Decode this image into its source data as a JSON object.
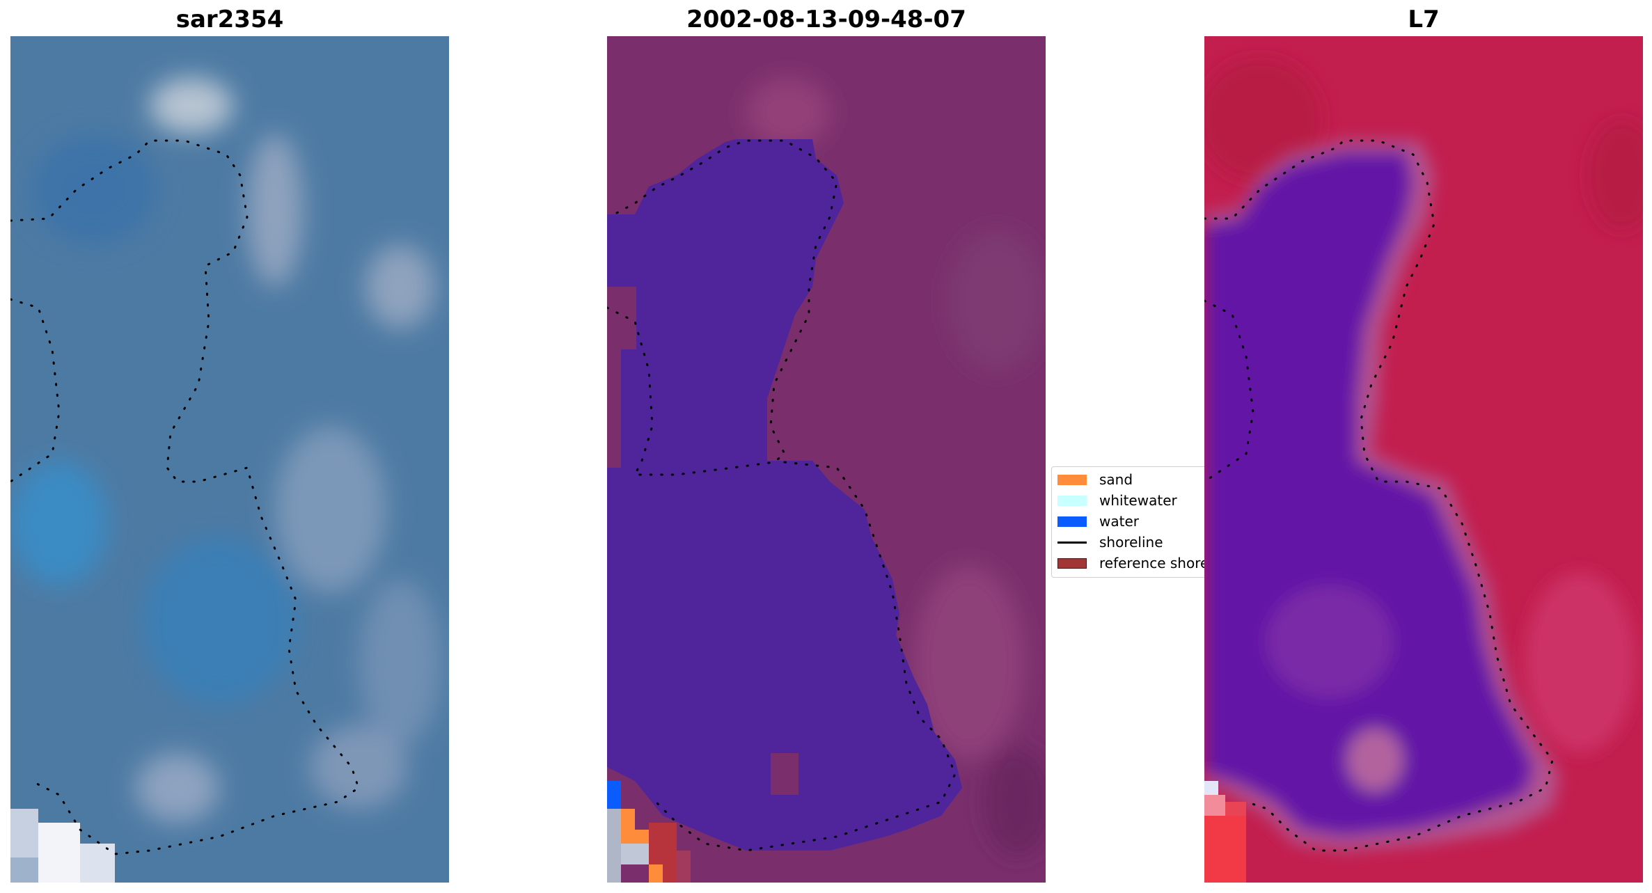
{
  "panels": [
    {
      "title": "sar2354"
    },
    {
      "title": "2002-08-13-09-48-07"
    },
    {
      "title": "L7"
    }
  ],
  "legend": {
    "items": [
      {
        "label": "sand",
        "color": "#FF8C3A",
        "kind": "patch"
      },
      {
        "label": "whitewater",
        "color": "#C8FFFF",
        "kind": "patch"
      },
      {
        "label": "water",
        "color": "#0A5CFF",
        "kind": "patch"
      },
      {
        "label": "shoreline",
        "color": "#000000",
        "kind": "line"
      },
      {
        "label": "reference shoreline",
        "color": "#A23535",
        "kind": "patch"
      }
    ]
  },
  "colors": {
    "rgb_base": "#4A78A2",
    "classified_water_body": "#50249A",
    "classified_background": "#7A2F6C",
    "false_color_background": "#C21E4E",
    "false_color_water": "#6018A8",
    "shoreline_dots": "#000000"
  }
}
